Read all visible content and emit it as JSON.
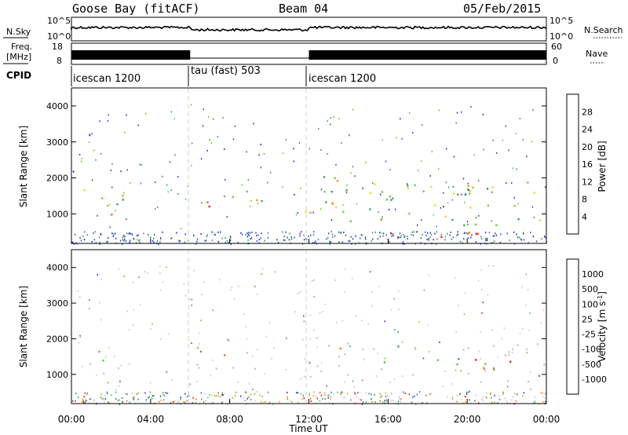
{
  "header": {
    "station": "Goose Bay (fitACF)",
    "beam": "Beam 04",
    "date": "05/Feb/2015"
  },
  "summary_panels": {
    "nsky_label": "N.Sky",
    "nsky_ticks": [
      "10^5",
      "10^0"
    ],
    "nsearch_label": "N.Search",
    "nsearch_ticks": [
      "10^5",
      "10^0"
    ],
    "freq_label_line1": "Freq.",
    "freq_label_line2": "[MHz]",
    "freq_ticks": [
      "18",
      "8"
    ],
    "nave_label": "Nave",
    "nave_ticks": [
      "60",
      "0"
    ],
    "cpid_label": "CPID",
    "cpid_segments": [
      {
        "name": "icescan 1200",
        "start_hour": 0,
        "end_hour": 6
      },
      {
        "name": "tau (fast) 503",
        "start_hour": 6,
        "end_hour": 12
      },
      {
        "name": "icescan 1200",
        "start_hour": 12,
        "end_hour": 24
      }
    ]
  },
  "chart_data": [
    {
      "type": "heatmap",
      "panel": "power",
      "ylabel": "Slant Range [km]",
      "xlim": [
        0,
        24
      ],
      "ylim": [
        180,
        4500
      ],
      "yticks": [
        1000,
        2000,
        3000,
        4000
      ],
      "colorbar_label": "Power [dB]",
      "colorbar_ticks": [
        "4",
        "8",
        "12",
        "16",
        "20",
        "24",
        "28"
      ],
      "colorbar_colors": [
        "#1f1fff",
        "#2b4fa8",
        "#3f8f6a",
        "#5fcc3a",
        "#f0d020",
        "#f09020",
        "#f05a20",
        "#e81818"
      ],
      "echo_regions": [
        {
          "t0": 0.4,
          "t1": 2.6,
          "r0": 900,
          "r1": 1700,
          "level": 0.5
        },
        {
          "t0": 1.2,
          "t1": 2.2,
          "r0": 900,
          "r1": 1200,
          "level": 0.85
        },
        {
          "t0": 6.0,
          "t1": 9.6,
          "r0": 1100,
          "r1": 1800,
          "level": 0.55
        },
        {
          "t0": 6.6,
          "t1": 8.4,
          "r0": 1200,
          "r1": 1500,
          "level": 0.8
        },
        {
          "t0": 11.6,
          "t1": 14.8,
          "r0": 800,
          "r1": 2100,
          "level": 0.5
        },
        {
          "t0": 15.0,
          "t1": 24.0,
          "r0": 700,
          "r1": 1900,
          "level": 0.45
        },
        {
          "t0": 15.4,
          "t1": 20.6,
          "r0": 250,
          "r1": 600,
          "level": 0.9
        },
        {
          "t0": 19.2,
          "t1": 22.4,
          "r0": 1300,
          "r1": 1800,
          "level": 0.4
        }
      ]
    },
    {
      "type": "heatmap",
      "panel": "velocity",
      "ylabel": "Slant Range [km]",
      "xlabel": "Time UT",
      "xlim": [
        0,
        24
      ],
      "ylim": [
        180,
        4500
      ],
      "yticks": [
        1000,
        2000,
        3000,
        4000
      ],
      "xticks": [
        "00:00",
        "04:00",
        "08:00",
        "12:00",
        "16:00",
        "20:00",
        "00:00"
      ],
      "colorbar_label": "Velocity [m s^-1]",
      "colorbar_ticks": [
        "1000",
        "500",
        "100",
        "25",
        "-25",
        "-100",
        "-500",
        "-1000"
      ],
      "colorbar_colors": [
        "#1f2fd0",
        "#2a62b8",
        "#2f9a6a",
        "#4cc63a",
        "#c8c8c8",
        "#c8c8c8",
        "#f0a020",
        "#f06a18",
        "#e01818"
      ],
      "echo_regions": [
        {
          "t0": 0.4,
          "t1": 2.6,
          "r0": 900,
          "r1": 1700,
          "level": 0.5
        },
        {
          "t0": 6.0,
          "t1": 9.6,
          "r0": 1100,
          "r1": 1800,
          "level": 0.7
        },
        {
          "t0": 11.6,
          "t1": 14.8,
          "r0": 800,
          "r1": 2100,
          "level": 0.75
        },
        {
          "t0": 15.0,
          "t1": 24.0,
          "r0": 700,
          "r1": 1900,
          "level": 0.5
        },
        {
          "t0": 20.2,
          "t1": 22.6,
          "r0": 800,
          "r1": 1700,
          "level": 0.8
        }
      ]
    }
  ]
}
